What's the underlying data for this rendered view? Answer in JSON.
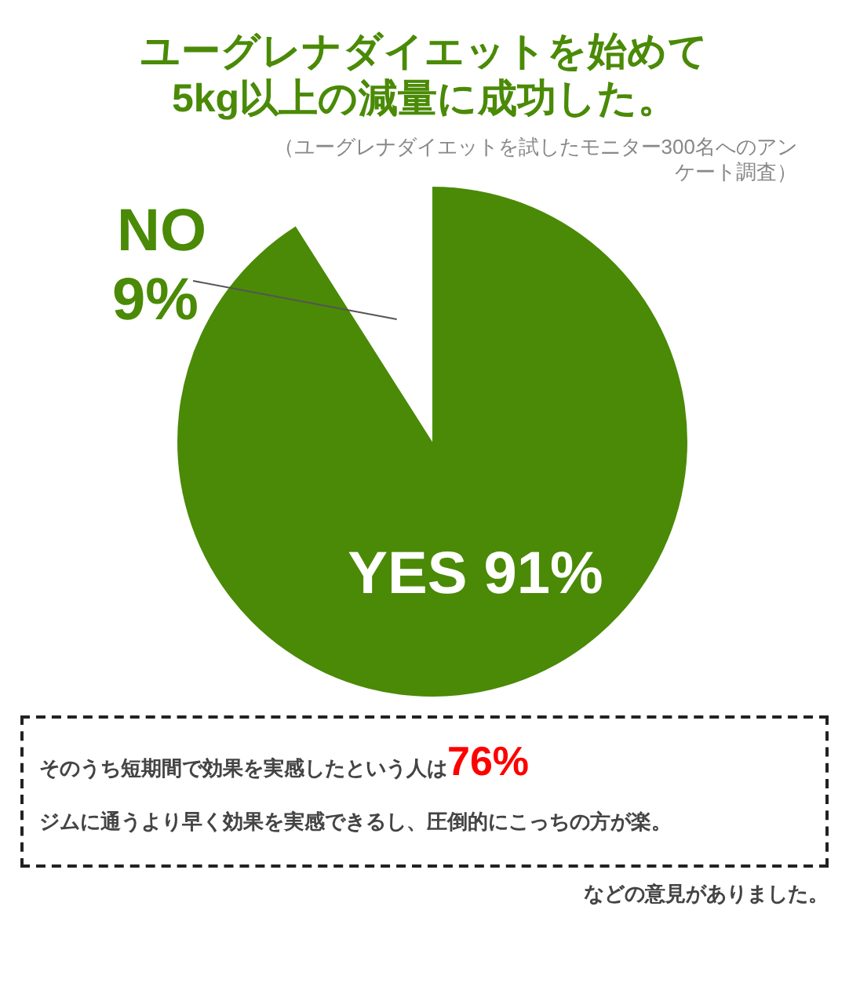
{
  "chart_data": {
    "type": "pie",
    "title": "ユーグレナダイエットを始めて\n5kg以上の減量に成功した。",
    "subtitle": "（ユーグレナダイエットを試したモニター300名へのアンケート調査）",
    "categories": [
      "YES",
      "NO"
    ],
    "values": [
      91,
      9
    ],
    "colors": [
      "#4a8a06",
      "#ffffff"
    ],
    "value_labels": [
      "91%",
      "9%"
    ],
    "legend": false,
    "annotations": [
      "そのうち短期間で効果を実感したという人は76%",
      "ジムに通うより早く効果を実感できるし、圧倒的にこっちの方が楽。",
      "などの意見がありました。"
    ]
  }
}
